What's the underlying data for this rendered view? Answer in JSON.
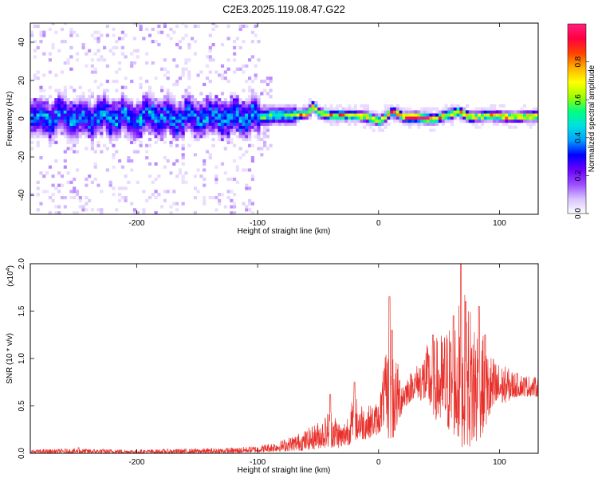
{
  "figure_title": "C2E3.2025.119.08.47.G22",
  "chart_data": [
    {
      "type": "heatmap",
      "xlabel": "Height of straight line (km)",
      "ylabel": "Frequency (Hz)",
      "xlim": [
        -288,
        132
      ],
      "ylim": [
        -50,
        50
      ],
      "xticks": [
        -200,
        -100,
        0,
        100
      ],
      "yticks": [
        -40,
        -20,
        0,
        20,
        40
      ],
      "grid": false,
      "colorbar": {
        "label": "Normalized spectral amplitude",
        "range": [
          0,
          1
        ],
        "ticks": [
          "0.0",
          "0.2",
          "0.4",
          "0.6",
          "0.8"
        ],
        "colormap": [
          "#ffffff",
          "#d8c2ff",
          "#9b4dff",
          "#6a00ff",
          "#0000ff",
          "#00a0ff",
          "#00e0e0",
          "#00ff80",
          "#a0ff00",
          "#ffff00",
          "#ffb000",
          "#ff4000",
          "#ff0040",
          "#ff2080"
        ]
      },
      "ridge_center_hz": [
        {
          "x": -100,
          "y": 0
        },
        {
          "x": -90,
          "y": 1
        },
        {
          "x": -75,
          "y": 1
        },
        {
          "x": -60,
          "y": 2
        },
        {
          "x": -55,
          "y": 6
        },
        {
          "x": -50,
          "y": 2
        },
        {
          "x": -40,
          "y": 1
        },
        {
          "x": -20,
          "y": 1
        },
        {
          "x": -10,
          "y": 0
        },
        {
          "x": 0,
          "y": -2
        },
        {
          "x": 10,
          "y": 3
        },
        {
          "x": 20,
          "y": 0
        },
        {
          "x": 30,
          "y": 0
        },
        {
          "x": 45,
          "y": -1
        },
        {
          "x": 55,
          "y": 1
        },
        {
          "x": 65,
          "y": 3
        },
        {
          "x": 75,
          "y": 0
        },
        {
          "x": 90,
          "y": 1
        },
        {
          "x": 110,
          "y": 0
        },
        {
          "x": 132,
          "y": 1
        }
      ]
    },
    {
      "type": "line",
      "xlabel": "Height of straight line (km)",
      "ylabel": "SNR (10 * v/v)",
      "y_multiplier": "(x10",
      "y_multiplier_exp": "4",
      "xlim": [
        -288,
        132
      ],
      "ylim": [
        0,
        2
      ],
      "xticks": [
        -200,
        -100,
        0,
        100
      ],
      "yticks": [
        "0.0",
        "0.5",
        "1.0",
        "1.5",
        "2.0"
      ],
      "grid": false,
      "series": [
        {
          "color": "#e8302a",
          "envelope": [
            {
              "x": -288,
              "lo": 0.0,
              "hi": 0.04
            },
            {
              "x": -250,
              "lo": 0.0,
              "hi": 0.05
            },
            {
              "x": -200,
              "lo": 0.0,
              "hi": 0.04
            },
            {
              "x": -150,
              "lo": 0.0,
              "hi": 0.05
            },
            {
              "x": -120,
              "lo": 0.0,
              "hi": 0.06
            },
            {
              "x": -100,
              "lo": 0.01,
              "hi": 0.08
            },
            {
              "x": -80,
              "lo": 0.02,
              "hi": 0.14
            },
            {
              "x": -60,
              "lo": 0.03,
              "hi": 0.25
            },
            {
              "x": -45,
              "lo": 0.06,
              "hi": 0.38
            },
            {
              "x": -40,
              "lo": 0.06,
              "hi": 0.5
            },
            {
              "x": -30,
              "lo": 0.05,
              "hi": 0.3
            },
            {
              "x": -20,
              "lo": 0.12,
              "hi": 0.62
            },
            {
              "x": -10,
              "lo": 0.15,
              "hi": 0.5
            },
            {
              "x": 0,
              "lo": 0.2,
              "hi": 0.55
            },
            {
              "x": 5,
              "lo": 0.3,
              "hi": 1.0
            },
            {
              "x": 10,
              "lo": 0.05,
              "hi": 1.2
            },
            {
              "x": 20,
              "lo": 0.45,
              "hi": 0.8
            },
            {
              "x": 30,
              "lo": 0.6,
              "hi": 0.9
            },
            {
              "x": 40,
              "lo": 0.5,
              "hi": 1.15
            },
            {
              "x": 50,
              "lo": 0.3,
              "hi": 1.25
            },
            {
              "x": 60,
              "lo": 0.2,
              "hi": 1.4
            },
            {
              "x": 70,
              "lo": 0.05,
              "hi": 1.7
            },
            {
              "x": 80,
              "lo": 0.05,
              "hi": 1.5
            },
            {
              "x": 90,
              "lo": 0.3,
              "hi": 1.1
            },
            {
              "x": 100,
              "lo": 0.5,
              "hi": 0.95
            },
            {
              "x": 115,
              "lo": 0.6,
              "hi": 0.85
            },
            {
              "x": 132,
              "lo": 0.6,
              "hi": 0.8
            }
          ],
          "spikes": [
            {
              "x": -248,
              "y": 0.06
            },
            {
              "x": -40,
              "y": 0.62
            },
            {
              "x": -20,
              "y": 0.75
            },
            {
              "x": 9,
              "y": 1.65
            },
            {
              "x": 11,
              "y": 1.3
            },
            {
              "x": 45,
              "y": 1.25
            },
            {
              "x": 62,
              "y": 1.45
            },
            {
              "x": 68,
              "y": 2.0
            },
            {
              "x": 72,
              "y": 1.6
            },
            {
              "x": 83,
              "y": 1.55
            },
            {
              "x": 88,
              "y": 1.25
            }
          ]
        }
      ]
    }
  ]
}
